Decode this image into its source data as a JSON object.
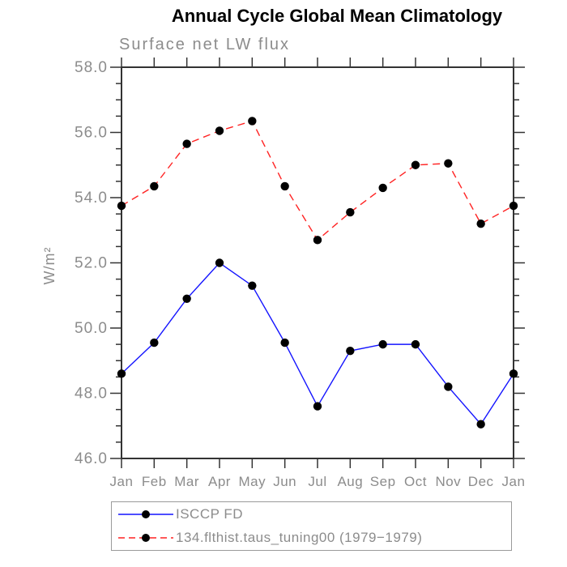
{
  "page": {
    "background": "#ffffff"
  },
  "chart_data": {
    "type": "line",
    "title": "Annual Cycle Global Mean Climatology",
    "subtitle": "Surface net LW flux",
    "ylabel": "W/m²",
    "xlabel": "",
    "categories": [
      "Jan",
      "Feb",
      "Mar",
      "Apr",
      "May",
      "Jun",
      "Jul",
      "Aug",
      "Sep",
      "Oct",
      "Nov",
      "Dec",
      "Jan"
    ],
    "ylim": [
      46.0,
      58.0
    ],
    "ytick_interval_major": 2.0,
    "ytick_interval_minor": 0.5,
    "ytick_labels": [
      "46.0",
      "48.0",
      "50.0",
      "52.0",
      "54.0",
      "56.0",
      "58.0"
    ],
    "grid": false,
    "legend_position": "bottom",
    "axis_color": "#333333",
    "text_color": "#8c8c8c",
    "marker_color": "#000000",
    "series": [
      {
        "name": "ISCCP FD",
        "color": "#1414ff",
        "line_style": "solid",
        "marker": "filled-black-circle",
        "values": [
          48.6,
          49.55,
          50.9,
          52.0,
          51.3,
          49.55,
          47.6,
          49.3,
          49.5,
          49.5,
          48.2,
          47.05,
          48.6
        ]
      },
      {
        "name": "134.flthist.taus_tuning00 (1979−1979)",
        "color": "#ff2222",
        "line_style": "dashed",
        "marker": "filled-black-circle",
        "values": [
          53.75,
          54.35,
          55.65,
          56.05,
          56.35,
          54.35,
          52.7,
          53.55,
          54.3,
          55.0,
          55.05,
          53.2,
          53.75
        ]
      }
    ]
  }
}
